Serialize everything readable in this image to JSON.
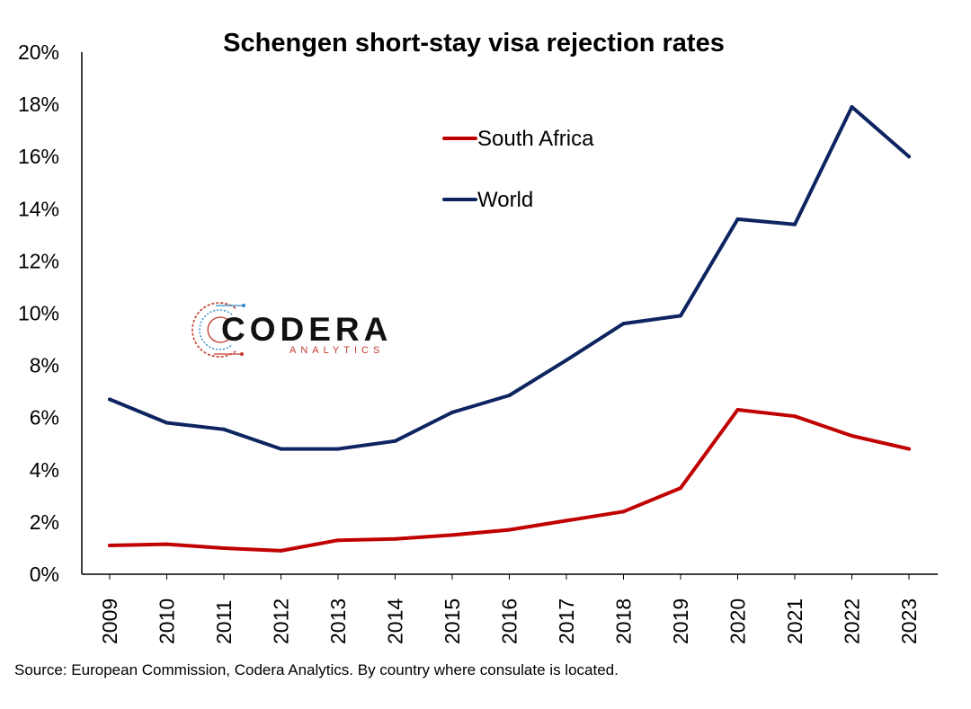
{
  "chart_data": {
    "type": "line",
    "title": "Schengen short-stay visa rejection rates",
    "x": [
      "2009",
      "2010",
      "2011",
      "2012",
      "2013",
      "2014",
      "2015",
      "2016",
      "2017",
      "2018",
      "2019",
      "2020",
      "2021",
      "2022",
      "2023"
    ],
    "series": [
      {
        "name": "South Africa",
        "color": "#c00000",
        "values": [
          1.1,
          1.15,
          1.0,
          0.9,
          1.3,
          1.35,
          1.5,
          1.7,
          2.05,
          2.4,
          3.3,
          6.3,
          6.05,
          5.3,
          4.8
        ]
      },
      {
        "name": "World",
        "color": "#0d2461",
        "values": [
          6.7,
          5.8,
          5.55,
          4.8,
          4.8,
          5.1,
          6.2,
          6.85,
          8.2,
          9.6,
          9.9,
          13.6,
          13.4,
          17.9,
          16.0
        ]
      }
    ],
    "ylim": [
      0,
      20
    ],
    "y_ticks": [
      "0%",
      "2%",
      "4%",
      "6%",
      "8%",
      "10%",
      "12%",
      "14%",
      "16%",
      "18%",
      "20%"
    ],
    "y_unit": "%",
    "xlabel": "",
    "ylabel": "",
    "grid": false,
    "legend_position": "top-center"
  },
  "source_note": "Source: European Commission, Codera Analytics. By country where consulate is located.",
  "logo": {
    "name": "CODERA",
    "tagline": "ANALYTICS"
  }
}
